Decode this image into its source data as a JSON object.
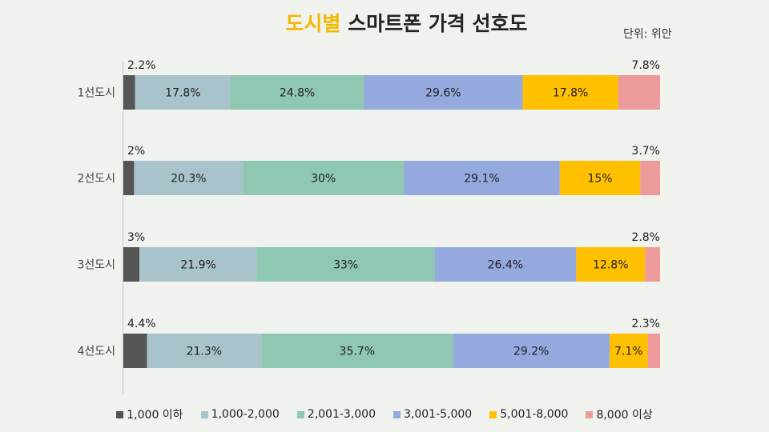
{
  "title": {
    "highlight": "도시별",
    "rest": " 스마트폰 가격 선호도"
  },
  "unit": "단위: 위안",
  "chart_data": {
    "type": "bar",
    "orientation": "horizontal",
    "stacked": true,
    "normalized": true,
    "categories": [
      "1선도시",
      "2선도시",
      "3선도시",
      "4선도시"
    ],
    "series": [
      {
        "name": "1,000 이하",
        "color": "#555555",
        "values": [
          2.2,
          2,
          3,
          4.4
        ],
        "labels": [
          "2.2%",
          "2%",
          "3%",
          "4.4%"
        ]
      },
      {
        "name": "1,000-2,000",
        "color": "#a8c3cb",
        "values": [
          17.8,
          20.3,
          21.9,
          21.3
        ],
        "labels": [
          "17.8%",
          "20.3%",
          "21.9%",
          "21.3%"
        ]
      },
      {
        "name": "2,001-3,000",
        "color": "#8fc8b0",
        "values": [
          24.8,
          30,
          33,
          35.7
        ],
        "labels": [
          "24.8%",
          "30%",
          "33%",
          "35.7%"
        ]
      },
      {
        "name": "3,001-5,000",
        "color": "#94a9dd",
        "values": [
          29.6,
          29.1,
          26.4,
          29.2
        ],
        "labels": [
          "29.6%",
          "29.1%",
          "26.4%",
          "29.2%"
        ]
      },
      {
        "name": "5,001-8,000",
        "color": "#ffc000",
        "values": [
          17.8,
          15,
          12.8,
          7.1
        ],
        "labels": [
          "17.8%",
          "15%",
          "12.8%",
          "7.1%"
        ]
      },
      {
        "name": "8,000 이상",
        "color": "#ec9a9a",
        "values": [
          7.8,
          3.7,
          2.8,
          2.3
        ],
        "labels": [
          "7.8%",
          "3.7%",
          "2.8%",
          "2.3%"
        ]
      }
    ],
    "xlim": [
      0,
      100
    ],
    "grid": false,
    "legend": "bottom"
  }
}
